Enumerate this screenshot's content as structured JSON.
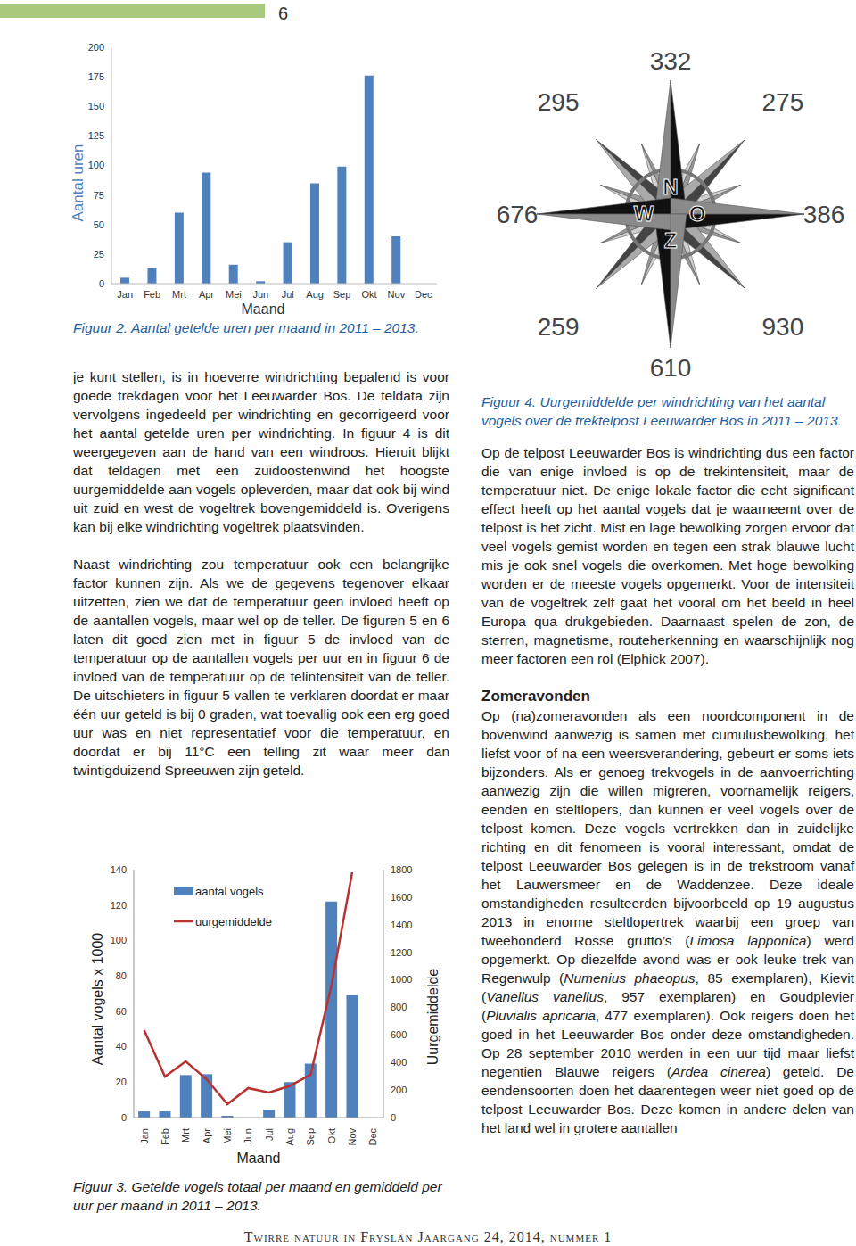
{
  "page_number": 6,
  "chart_data": [
    {
      "type": "bar",
      "categories": [
        "Jan",
        "Feb",
        "Mrt",
        "Apr",
        "Mei",
        "Jun",
        "Jul",
        "Aug",
        "Sep",
        "Okt",
        "Nov",
        "Dec"
      ],
      "values": [
        5,
        13,
        60,
        94,
        16,
        2,
        35,
        85,
        99,
        176,
        40,
        0
      ],
      "color": "#4f81bd",
      "ylim": [
        0,
        200
      ],
      "yticks": [
        0,
        25,
        50,
        75,
        100,
        125,
        150,
        175,
        200
      ],
      "y_label": "Aantal uren",
      "x_label": "Maand",
      "caption": "Figuur 2. Aantal getelde uren per maand in 2011 – 2013."
    },
    {
      "type": "bar",
      "categories": [
        "Jan",
        "Feb",
        "Mrt",
        "Apr",
        "Mei",
        "Jun",
        "Jul",
        "Aug",
        "Sep",
        "Okt",
        "Nov",
        "Dec"
      ],
      "series": [
        {
          "name": "aantal vogels",
          "type": "bar",
          "color": "#4f81bd",
          "values": [
            3.5,
            3.5,
            24,
            24.5,
            1,
            0,
            4.5,
            20,
            30.5,
            122,
            69,
            0
          ]
        },
        {
          "name": "uurgemiddelde",
          "type": "line",
          "axis": "y2",
          "color": "#b83232",
          "values": [
            635,
            298,
            408,
            278,
            97,
            214,
            181,
            230,
            311,
            958,
            1780,
            null
          ]
        }
      ],
      "ylim": [
        0,
        140
      ],
      "yticks": [
        0,
        20,
        40,
        60,
        80,
        100,
        120,
        140
      ],
      "y2lim": [
        0,
        1800
      ],
      "y2ticks": [
        0,
        200,
        400,
        600,
        800,
        1000,
        1200,
        1400,
        1600,
        1800
      ],
      "legend": "upper left",
      "y_label": "Aantal vogels x 1000",
      "y2_label": "Uurgemiddelde",
      "x_label": "Maand",
      "caption": "Figuur 3. Getelde vogels totaal per maand en gemiddeld per uur per maand in 2011 – 2013."
    }
  ],
  "windrose": {
    "values": [
      332,
      275,
      386,
      930,
      610,
      259,
      676,
      295
    ],
    "letters": [
      "N",
      "O",
      "Z",
      "W"
    ],
    "caption": "Figuur 4. Uurgemiddelde per windrichting van het aantal vogels over de trektelpost Leeuwarder Bos in 2011 – 2013."
  },
  "left_column": [
    [
      "je kunt stellen, is in hoeverre windrichting bepalend is voor goede trekdagen voor het Leeuwarder Bos. De teldata zijn vervolgens ingedeeld per windrichting en gecorrigeerd voor het aantal getelde uren per windrichting. In figuur 4 is dit weergegeven aan de hand van een windroos. Hieruit blijkt dat teldagen met een zuidoostenwind het hoogste uurgemiddelde aan vogels opleverden, maar dat ook bij wind uit zuid en west de vogeltrek bovengemiddeld is. Overigens kan bij elke windrichting vogeltrek plaatsvinden."
    ],
    [
      "Naast windrichting zou temperatuur ook een belangrijke factor kunnen zijn. Als we de gegevens tegenover elkaar uitzetten, zien we dat de temperatuur geen invloed heeft op de aantallen vogels, maar wel op de teller. De figuren 5 en 6 laten dit goed zien met in figuur 5 de invloed van de temperatuur op de aantallen vogels per uur en in figuur 6 de invloed van de temperatuur op de telintensiteit van de teller. De uitschieters in figuur 5 vallen te verklaren doordat er maar één uur geteld is bij 0 graden, wat toevallig ook een erg goed uur was en niet representatief voor die temperatuur, en doordat er bij 11°C een telling zit waar meer dan twintigduizend Spreeuwen zijn geteld."
    ]
  ],
  "right_column": {
    "paragraphs_before": [
      [
        "Op de telpost Leeuwarder Bos is windrichting dus een factor die van enige invloed is op de trekintensiteit, maar de temperatuur niet. De enige lokale factor die echt significant effect heeft op het aantal vogels dat je waarneemt over de telpost is het zicht. Mist en lage bewolking zorgen ervoor dat veel vogels gemist worden en tegen een strak blauwe lucht mis je ook snel vogels die overkomen. Met hoge bewolking worden er de meeste vogels opgemerkt. Voor de intensiteit van de vogeltrek zelf gaat het vooral om het beeld in heel Europa qua drukgebieden. Daarnaast spelen de zon, de sterren, magnetisme, routeherkenning en waarschijnlijk nog meer factoren een rol (Elphick 2007)."
      ]
    ],
    "heading": "Zomeravonden",
    "paragraphs_after": [
      [
        "Op (na)zomeravonden als een noordcomponent in de bovenwind aanwezig is samen met cumulusbewolking, het liefst voor of na een weersverandering, gebeurt er soms iets bijzonders. Als er genoeg trekvogels in de aanvoerrichting aanwezig zijn die willen migreren, voornamelijk reigers, eenden en steltlopers, dan kunnen er veel vogels over de telpost komen. Deze vogels vertrekken dan in zuidelijke richting en dit fenomeen is vooral interessant, omdat de telpost Leeuwarder Bos gelegen is in de trekstroom vanaf het Lauwersmeer en de Waddenzee. Deze ideale omstandigheden resulteerden bijvoorbeeld op 19 augustus 2013 in enorme steltlopertrek waarbij een groep van tweehonderd Rosse grutto’s (",
        "Limosa lapponica",
        ") werd opgemerkt. Op diezelfde avond was er ook leuke trek van Regenwulp (",
        "Numenius phaeopus",
        ", 85 exemplaren), Kievit (",
        "Vanellus vanellus",
        ", 957 exemplaren) en Goudplevier (",
        "Pluvialis apricaria",
        ", 477 exemplaren). Ook reigers doen het goed in het Leeuwarder Bos onder deze omstandigheden. Op 28 september 2010 werden in een uur tijd maar liefst negentien Blauwe reigers (",
        "Ardea cinerea",
        ") geteld. De eendensoorten doen het daarentegen weer niet goed op de telpost Leeuwarder Bos. Deze komen in andere delen van het land wel in grotere aantallen"
      ]
    ]
  },
  "footer": "Twirre natuur in Fryslân Jaargang 24, 2014, nummer 1"
}
